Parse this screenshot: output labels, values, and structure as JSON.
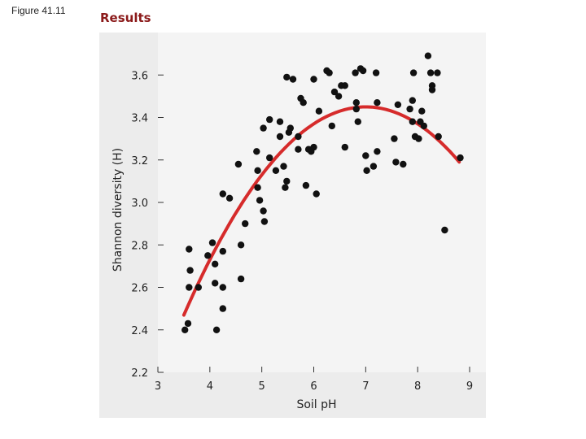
{
  "figure_label": "Figure 41.11",
  "section_label": "Results",
  "chart_data": {
    "type": "scatter",
    "title": "",
    "xlabel": "Soil pH",
    "ylabel": "Shannon diversity (H)",
    "xlim": [
      3,
      9
    ],
    "ylim": [
      2.2,
      3.8
    ],
    "xticks": [
      3,
      4,
      5,
      6,
      7,
      8,
      9
    ],
    "yticks": [
      2.2,
      2.4,
      2.6,
      2.8,
      3.0,
      3.2,
      3.4,
      3.6
    ],
    "ytick_labels": [
      "2.2",
      "2.4",
      "2.6",
      "2.8",
      "3.0",
      "3.2",
      "3.4",
      "3.6"
    ],
    "grid": false,
    "colors": {
      "points": "#111111",
      "fit": "#d62b2b",
      "panel": "#ececec"
    },
    "fit_curve": {
      "type": "quadratic",
      "x_range": [
        3.5,
        8.8
      ],
      "peak_x": 7.0,
      "peak_y": 3.45,
      "curvature": 0.08
    },
    "points": [
      [
        3.52,
        2.4
      ],
      [
        3.58,
        2.43
      ],
      [
        3.6,
        2.6
      ],
      [
        3.6,
        2.78
      ],
      [
        3.62,
        2.68
      ],
      [
        3.78,
        2.6
      ],
      [
        3.96,
        2.75
      ],
      [
        4.05,
        2.81
      ],
      [
        4.1,
        2.62
      ],
      [
        4.1,
        2.71
      ],
      [
        4.13,
        2.4
      ],
      [
        4.25,
        2.77
      ],
      [
        4.25,
        2.6
      ],
      [
        4.25,
        2.5
      ],
      [
        4.25,
        3.04
      ],
      [
        4.38,
        3.02
      ],
      [
        4.55,
        3.18
      ],
      [
        4.6,
        2.8
      ],
      [
        4.6,
        2.64
      ],
      [
        4.68,
        2.9
      ],
      [
        4.9,
        3.24
      ],
      [
        4.92,
        3.07
      ],
      [
        4.92,
        3.15
      ],
      [
        4.96,
        3.01
      ],
      [
        5.03,
        2.96
      ],
      [
        5.05,
        2.91
      ],
      [
        5.03,
        3.35
      ],
      [
        5.15,
        3.21
      ],
      [
        5.15,
        3.39
      ],
      [
        5.27,
        3.15
      ],
      [
        5.35,
        3.38
      ],
      [
        5.35,
        3.31
      ],
      [
        5.42,
        3.17
      ],
      [
        5.45,
        3.07
      ],
      [
        5.48,
        3.59
      ],
      [
        5.48,
        3.1
      ],
      [
        5.52,
        3.33
      ],
      [
        5.55,
        3.35
      ],
      [
        5.6,
        3.58
      ],
      [
        5.7,
        3.31
      ],
      [
        5.7,
        3.25
      ],
      [
        5.75,
        3.49
      ],
      [
        5.8,
        3.47
      ],
      [
        5.85,
        3.08
      ],
      [
        5.9,
        3.25
      ],
      [
        5.95,
        3.24
      ],
      [
        6.0,
        3.26
      ],
      [
        6.0,
        3.58
      ],
      [
        6.05,
        3.04
      ],
      [
        6.1,
        3.43
      ],
      [
        6.25,
        3.62
      ],
      [
        6.3,
        3.61
      ],
      [
        6.35,
        3.36
      ],
      [
        6.4,
        3.52
      ],
      [
        6.48,
        3.5
      ],
      [
        6.53,
        3.55
      ],
      [
        6.6,
        3.55
      ],
      [
        6.6,
        3.26
      ],
      [
        6.8,
        3.61
      ],
      [
        6.82,
        3.44
      ],
      [
        6.82,
        3.47
      ],
      [
        6.85,
        3.38
      ],
      [
        6.9,
        3.63
      ],
      [
        6.95,
        3.62
      ],
      [
        7.0,
        3.22
      ],
      [
        7.02,
        3.15
      ],
      [
        7.15,
        3.17
      ],
      [
        7.2,
        3.61
      ],
      [
        7.22,
        3.24
      ],
      [
        7.22,
        3.47
      ],
      [
        7.55,
        3.3
      ],
      [
        7.58,
        3.19
      ],
      [
        7.62,
        3.46
      ],
      [
        7.72,
        3.18
      ],
      [
        7.85,
        3.44
      ],
      [
        7.9,
        3.48
      ],
      [
        7.9,
        3.38
      ],
      [
        7.92,
        3.61
      ],
      [
        7.95,
        3.31
      ],
      [
        8.02,
        3.3
      ],
      [
        8.05,
        3.38
      ],
      [
        8.08,
        3.43
      ],
      [
        8.12,
        3.36
      ],
      [
        8.2,
        3.69
      ],
      [
        8.25,
        3.61
      ],
      [
        8.28,
        3.55
      ],
      [
        8.28,
        3.53
      ],
      [
        8.38,
        3.61
      ],
      [
        8.4,
        3.31
      ],
      [
        8.52,
        2.87
      ],
      [
        8.82,
        3.21
      ]
    ]
  }
}
